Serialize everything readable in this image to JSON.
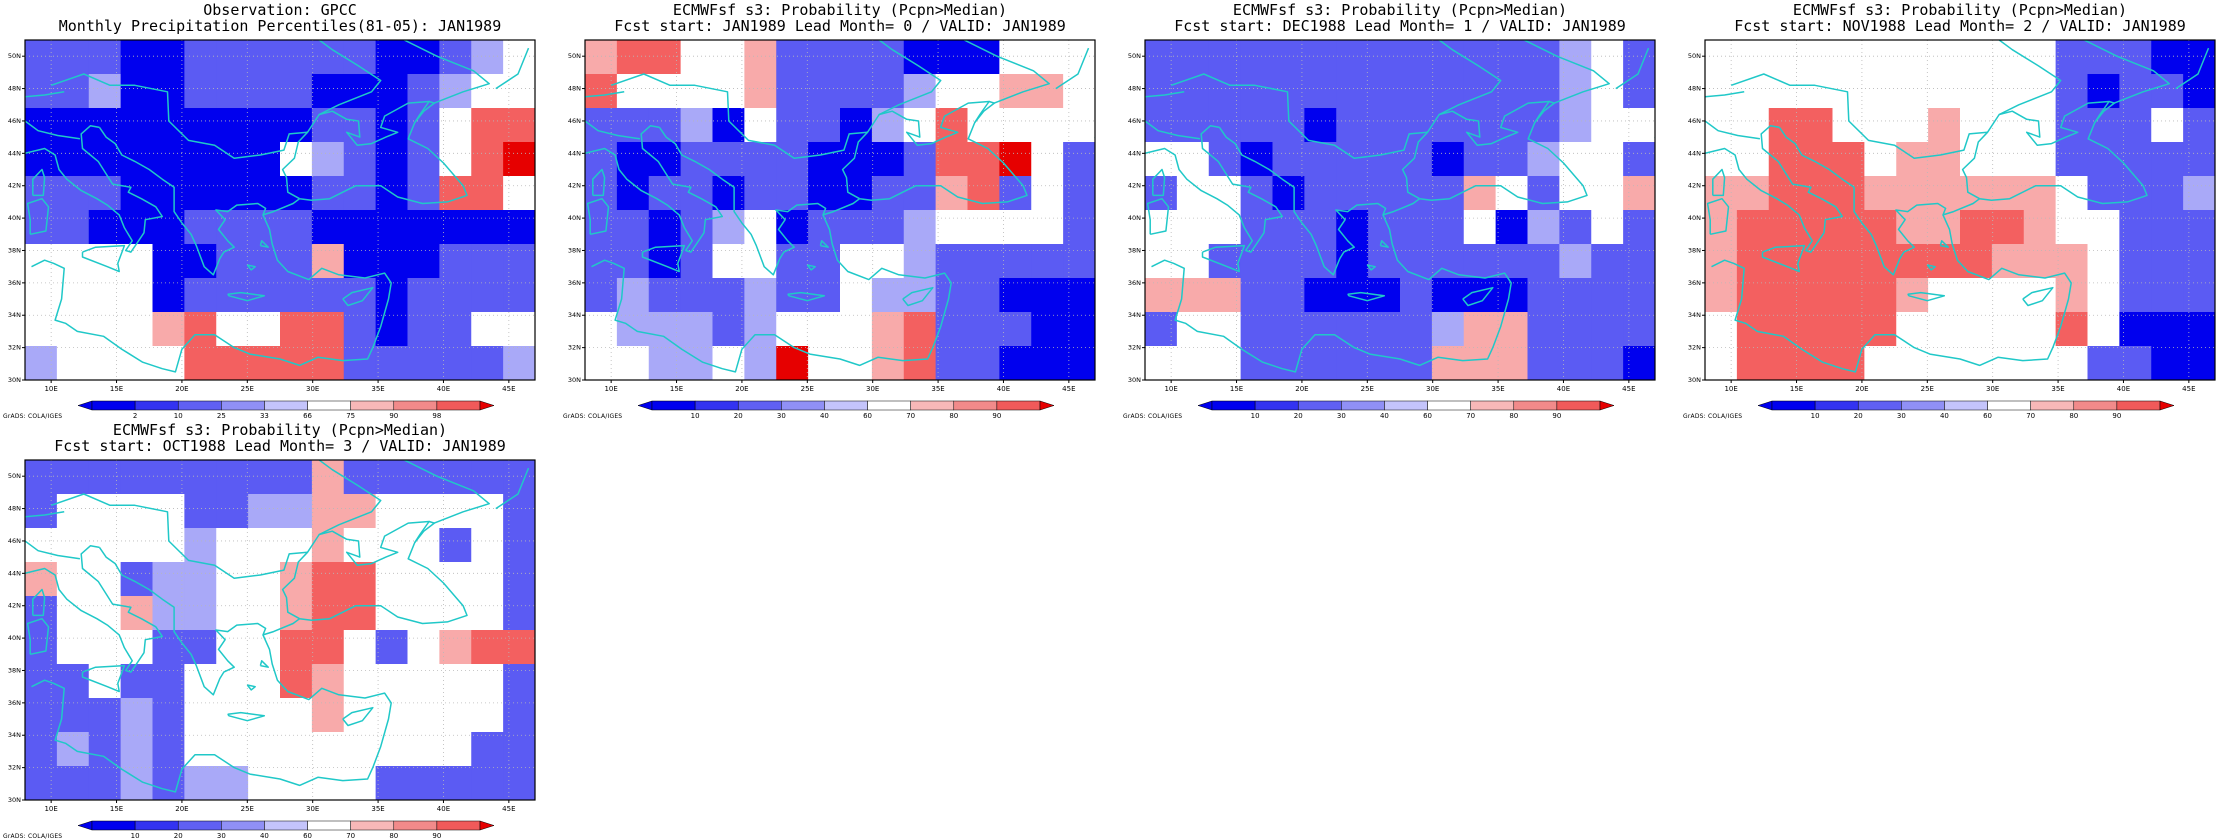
{
  "panels": [
    {
      "title1": "Observation: GPCC",
      "title2": "Monthly Precipitation Percentiles(81-05): JAN1989",
      "colorbar": {
        "levels": [
          "2",
          "10",
          "25",
          "33",
          "66",
          "75",
          "90",
          "98"
        ]
      },
      "grid": [
        "BBBDDBBBBBBDDBCW",
        "BBCDDBBBBDDDBCWW",
        "DDDDDDDDDBBDBWRR",
        "DDDDDDDDWCBDBWRS",
        "BBBDDDDDDBBDBRRW",
        "BBDDDBBBBDDDDDDD",
        "WWWWDDBBBQDDDBBB",
        "WWWWDBBBBBBDBBBB",
        "WWWWQRWWRRBDBBWW",
        "CWWWWRRRRRBBBBBC"
      ]
    },
    {
      "title1": "ECMWFsf s3: Probability (Pcpn>Median)",
      "title2": "Fcst start: JAN1989  Lead Month= 0 / VALID: JAN1989",
      "colorbar": {
        "levels": [
          "10",
          "20",
          "30",
          "40",
          "60",
          "70",
          "80",
          "90"
        ]
      },
      "grid": [
        "QRRWWQBBBBDDDWWW",
        "RWWWWQBBBBCWWQQW",
        "BBBCDWBBDCWRWWWW",
        "BDDBBBBDDDBRRSWB",
        "BDBBDBBDDBBQRBWB",
        "BBDBCWDBBBCWWWWB",
        "BBDBWWBBWWCBBBBB",
        "BCBBBCBBWCCBBDDD",
        "WCCCBCWWWQRBBBDD",
        "WWCCWCSWWQRBBDDD"
      ]
    },
    {
      "title1": "ECMWFsf s3: Probability (Pcpn>Median)",
      "title2": "Fcst start: DEC1988  Lead Month= 1 / VALID: JAN1989",
      "colorbar": {
        "levels": [
          "10",
          "20",
          "30",
          "40",
          "60",
          "70",
          "80",
          "90"
        ]
      },
      "grid": [
        "BBBBBBBBBBBBBCWB",
        "BBBBBBBBBBBBBCWB",
        "BBBBBDBBBBBBBCWW",
        "WWBDBBBBBDBBCWWB",
        "BWWBDBBBBBQWBWWQ",
        "WWWBBBDBBBWDCBWB",
        "WWBBBBDBBBBBBCBB",
        "QQQBBDDDBDDDBBBB",
        "BWWBBBBBBCQQBBBB",
        "WWWBBBBBBQQQBBBD"
      ]
    },
    {
      "title1": "ECMWFsf s3: Probability (Pcpn>Median)",
      "title2": "Fcst start: NOV1988  Lead Month= 2 / VALID: JAN1989",
      "colorbar": {
        "levels": [
          "10",
          "20",
          "30",
          "40",
          "60",
          "70",
          "80",
          "90"
        ]
      },
      "grid": [
        "WWWWWWWWWWWBBBDD",
        "WWWWWWWWWWWBDBBD",
        "WWRRWWWQWWWBBBWB",
        "WWRRRWQQWWWBBBBB",
        "QQRRRQQQQQQWBBBC",
        "QRRRRRQQRRQWWBBB",
        "QRRRRRRRRQQQWBBB",
        "QRRRRRQWWWWQWBBB",
        "WRRRRRWWWWWRWDDD",
        "WRRRRWWWWWWWBBDD"
      ]
    },
    {
      "title1": "ECMWFsf s3: Probability (Pcpn>Median)",
      "title2": "Fcst start: OCT1988  Lead Month= 3 / VALID: JAN1989",
      "colorbar": {
        "levels": [
          "10",
          "20",
          "30",
          "40",
          "60",
          "70",
          "80",
          "90"
        ]
      },
      "grid": [
        "BBBBBBBBBQBBBBBB",
        "BWWWWBBCCQQWWWWB",
        "WWWWWCWWWQWWWBWB",
        "QWWBCCWWQRRWWWWB",
        "BWWQCCWWQRRWWWWB",
        "BWWWBBWWRRWBWQRR",
        "BBWBBWWWRQWWWWWB",
        "BBBCBWWWWQWWWWWB",
        "BCBCBWWWWWWWWWBB",
        "BBBCBCCWWWWBBBBB"
      ]
    }
  ],
  "colors": {
    "D": "#0000ee",
    "B": "#5b5bf3",
    "C": "#a9a9f8",
    "W": "#ffffff",
    "Q": "#f8aaaa",
    "R": "#f36060",
    "S": "#e60000",
    "coast": "#20c8c8",
    "bar_start": "#0000ee",
    "bar_end": "#e60000"
  },
  "axes": {
    "x_labels": [
      "10E",
      "15E",
      "20E",
      "25E",
      "30E",
      "35E",
      "40E",
      "45E"
    ],
    "y_labels": [
      "30N",
      "32N",
      "34N",
      "36N",
      "38N",
      "40N",
      "42N",
      "44N",
      "46N",
      "48N",
      "50N"
    ],
    "lon_range": [
      8,
      47
    ],
    "lat_range": [
      30,
      51
    ]
  },
  "credit": "GrADS: COLA/IGES"
}
